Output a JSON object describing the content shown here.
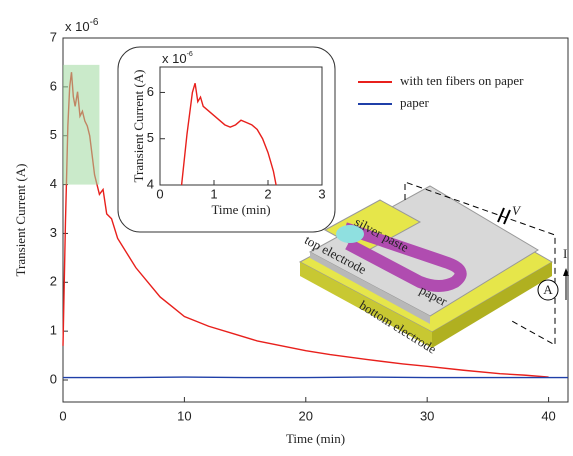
{
  "chart_data": [
    {
      "type": "line",
      "x_label": "Time (min)",
      "y_label": "Transient Current (A)",
      "y_multiplier": {
        "base": "x 10",
        "exponent": "-6"
      },
      "xlim": [
        0,
        41.6
      ],
      "ylim": [
        -0.45,
        7
      ],
      "xticks": [
        0,
        10,
        20,
        30,
        40
      ],
      "yticks": [
        0,
        1,
        2,
        3,
        4,
        5,
        6,
        7
      ],
      "highlight": {
        "xlim": [
          0,
          3
        ],
        "ylim": [
          4,
          6.45
        ],
        "color": "#9fd89f"
      },
      "series": [
        {
          "name": "with ten fibers on paper",
          "color": "#e8201c",
          "x": [
            0,
            0.2,
            0.4,
            0.55,
            0.7,
            0.85,
            1,
            1.2,
            1.4,
            1.6,
            1.8,
            2,
            2.2,
            2.4,
            2.6,
            2.8,
            3,
            3.3,
            3.6,
            4,
            4.5,
            5,
            5.5,
            6,
            7,
            8,
            9,
            10,
            11,
            12,
            14,
            16,
            18,
            20,
            22,
            25,
            28,
            30,
            33,
            36,
            38,
            40
          ],
          "values": [
            0.7,
            3.2,
            5.2,
            6.0,
            6.3,
            5.8,
            5.6,
            5.9,
            5.4,
            5.5,
            5.3,
            5.2,
            5.0,
            4.6,
            4.2,
            4.0,
            3.8,
            3.9,
            3.4,
            3.3,
            2.9,
            2.7,
            2.5,
            2.3,
            2.0,
            1.7,
            1.5,
            1.3,
            1.2,
            1.1,
            0.95,
            0.8,
            0.7,
            0.6,
            0.52,
            0.42,
            0.33,
            0.28,
            0.2,
            0.13,
            0.1,
            0.06
          ]
        },
        {
          "name": "paper",
          "color": "#1f3fa8",
          "x": [
            0,
            5,
            10,
            15,
            20,
            25,
            30,
            35,
            40,
            41.6
          ],
          "values": [
            0.05,
            0.05,
            0.06,
            0.05,
            0.05,
            0.06,
            0.05,
            0.05,
            0.05,
            0.05
          ]
        }
      ],
      "annotations": {
        "silver": "silver paste",
        "top": "top electrode",
        "paper": "paper",
        "bottom": "bottom electrode",
        "voltage": "V",
        "current": "I",
        "ammeter": "A"
      }
    },
    {
      "type": "line",
      "x_label": "Time (min)",
      "y_label": "Transient Current (A)",
      "y_multiplier": {
        "base": "x 10",
        "exponent": "-6"
      },
      "xlim": [
        0,
        3
      ],
      "ylim": [
        4,
        6.55
      ],
      "xticks": [
        0,
        1,
        2,
        3
      ],
      "yticks": [
        4,
        5,
        6
      ],
      "series": [
        {
          "name": "with ten fibers on paper",
          "color": "#e8201c",
          "x": [
            0.4,
            0.5,
            0.6,
            0.65,
            0.7,
            0.75,
            0.8,
            0.9,
            1.0,
            1.1,
            1.2,
            1.3,
            1.4,
            1.5,
            1.6,
            1.7,
            1.8,
            1.9,
            2.0,
            2.05,
            2.1,
            2.15
          ],
          "values": [
            4.0,
            5.1,
            6.0,
            6.2,
            5.8,
            5.9,
            5.7,
            5.6,
            5.5,
            5.4,
            5.3,
            5.25,
            5.3,
            5.4,
            5.35,
            5.3,
            5.2,
            5.0,
            4.7,
            4.5,
            4.3,
            4.0
          ]
        }
      ]
    }
  ]
}
